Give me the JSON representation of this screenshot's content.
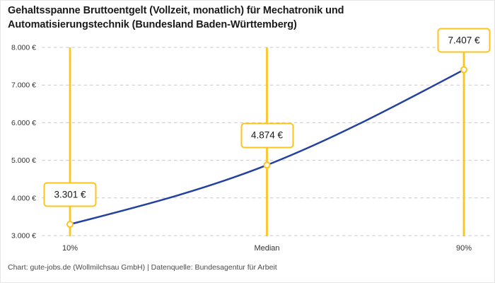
{
  "chart_data": {
    "type": "line",
    "title": "Gehaltsspanne Bruttoentgelt (Vollzeit, monatlich) für Mechatronik und Automatisierungstechnik (Bundesland Baden-Württemberg)",
    "xlabel": "",
    "ylabel": "",
    "categories": [
      "10%",
      "Median",
      "90%"
    ],
    "values": [
      3301,
      4874,
      7407
    ],
    "point_labels": [
      "3.301 €",
      "4.874 €",
      "7.407 €"
    ],
    "y_ticks": [
      {
        "value": 3000,
        "label": "3.000 €"
      },
      {
        "value": 4000,
        "label": "4.000 €"
      },
      {
        "value": 5000,
        "label": "5.000 €"
      },
      {
        "value": 6000,
        "label": "6.000 €"
      },
      {
        "value": 7000,
        "label": "7.000 €"
      },
      {
        "value": 8000,
        "label": "8.000 €"
      }
    ],
    "ylim": [
      3000,
      8000
    ],
    "grid": "horizontal-dashed",
    "legend": "none",
    "colors": {
      "line": "#2440A0",
      "accent": "#FCC41D",
      "marker_fill": "#FFFFFF",
      "grid": "#C9C9C9",
      "axis_text": "#333333",
      "title_text": "#1A1A1A",
      "source_text": "#4A4A4A"
    }
  },
  "footer": {
    "text": "Chart: gute-jobs.de (Wollmilchsau GmbH) | Datenquelle: Bundesagentur für Arbeit"
  }
}
